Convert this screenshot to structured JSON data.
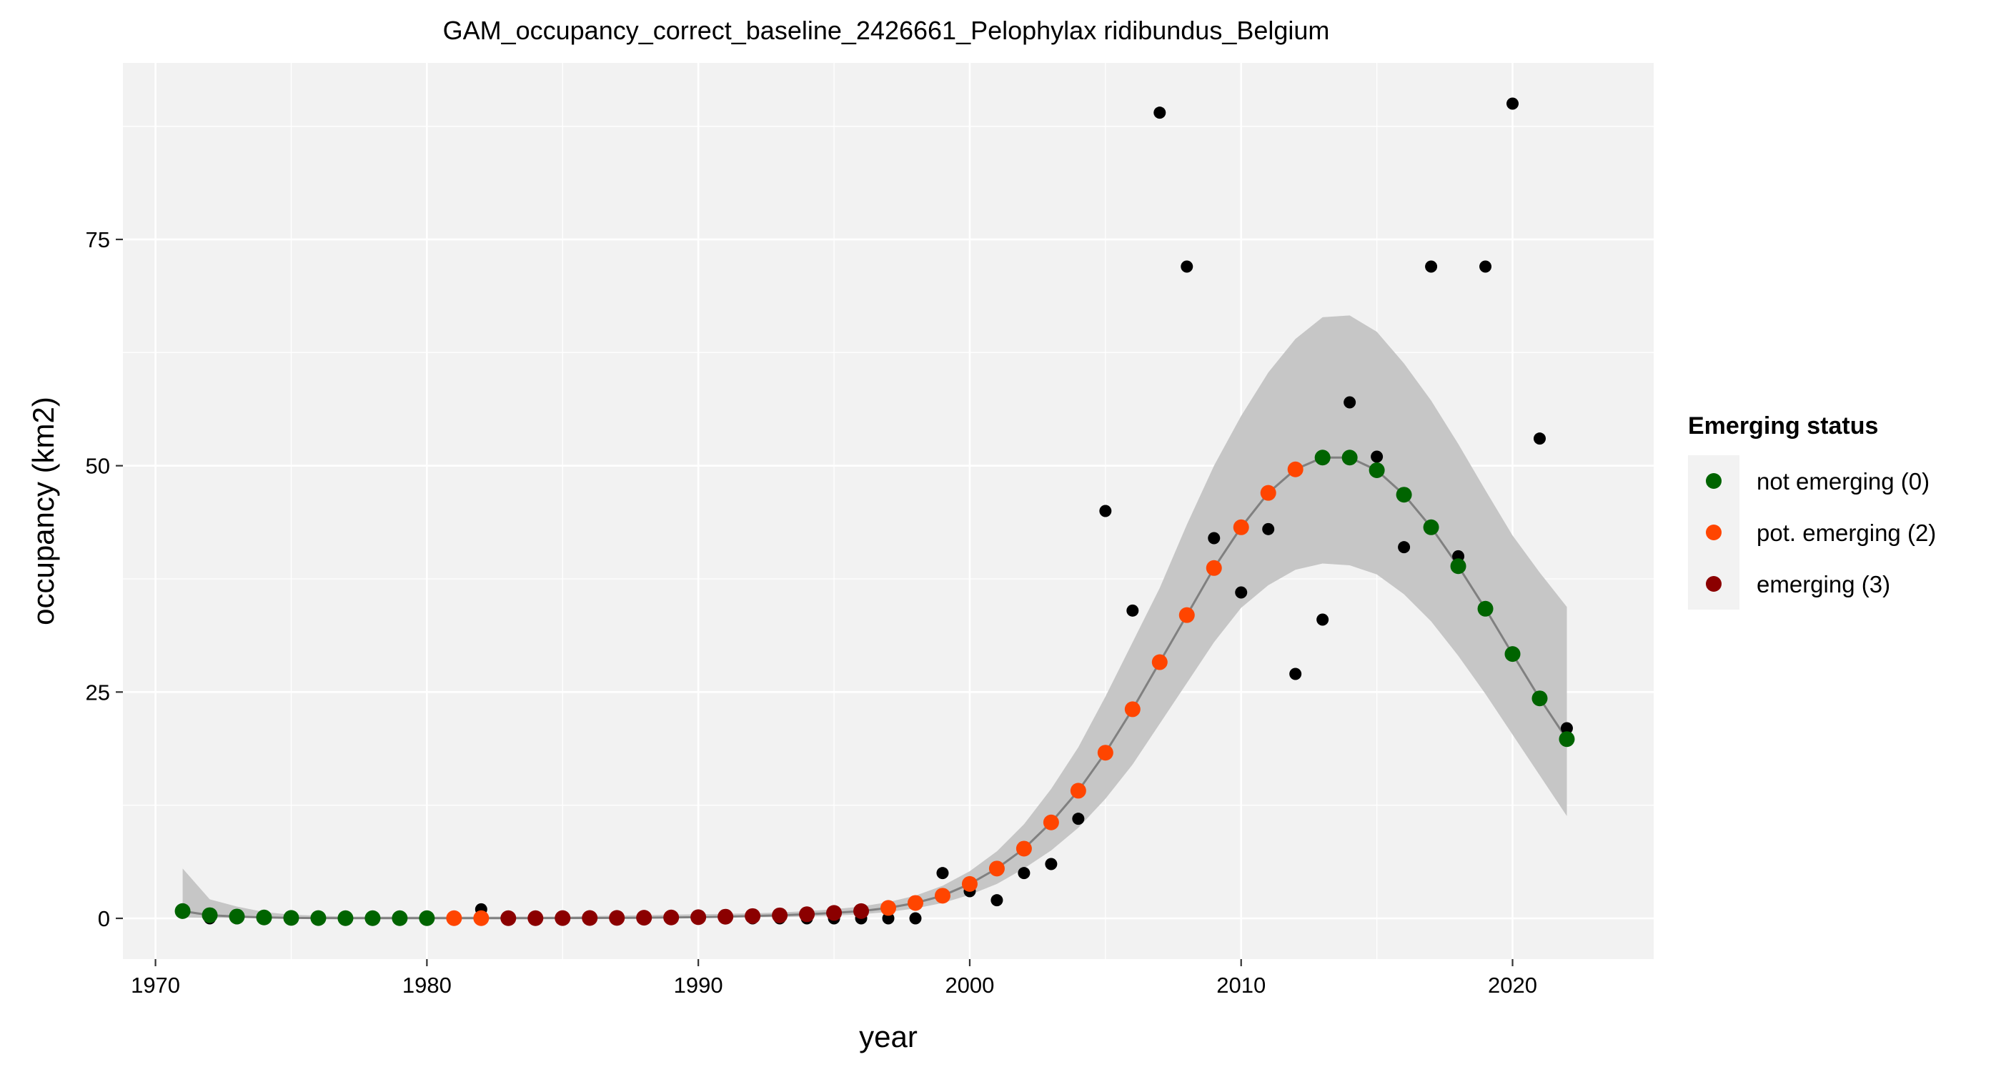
{
  "chart_data": {
    "type": "scatter",
    "title": "GAM_occupancy_correct_baseline_2426661_Pelophylax ridibundus_Belgium",
    "xlabel": "year",
    "ylabel": "occupancy (km2)",
    "xlim": [
      1968.8,
      2025.2
    ],
    "ylim": [
      -4.5,
      94.5
    ],
    "x_ticks": [
      1970,
      1980,
      1990,
      2000,
      2010,
      2020
    ],
    "y_ticks": [
      0,
      25,
      50,
      75
    ],
    "grid": true,
    "legend": {
      "title": "Emerging status",
      "placement": "right",
      "items": [
        {
          "label": "not emerging (0)",
          "color": "#006400"
        },
        {
          "label": "pot. emerging (2)",
          "color": "#FF4500"
        },
        {
          "label": "emerging (3)",
          "color": "#8B0000"
        }
      ]
    },
    "colors": {
      "panel": "#F2F2F2",
      "grid": "#FFFFFF",
      "ribbon": "#C6C6C6",
      "line": "#808080",
      "observed": "#000000"
    },
    "observed": {
      "x": [
        1971,
        1972,
        1973,
        1974,
        1975,
        1976,
        1977,
        1978,
        1979,
        1980,
        1981,
        1982,
        1983,
        1984,
        1985,
        1986,
        1987,
        1988,
        1989,
        1990,
        1991,
        1992,
        1993,
        1994,
        1995,
        1996,
        1997,
        1998,
        1999,
        2000,
        2001,
        2002,
        2003,
        2004,
        2005,
        2006,
        2007,
        2008,
        2009,
        2010,
        2011,
        2012,
        2013,
        2014,
        2015,
        2016,
        2017,
        2018,
        2019,
        2020,
        2021,
        2022
      ],
      "y": [
        1,
        0,
        0,
        0,
        0,
        0,
        0,
        0,
        0,
        0,
        0,
        1,
        0,
        0,
        0,
        0,
        0,
        0,
        0,
        0,
        0,
        0,
        0,
        0,
        0,
        0,
        0,
        0,
        5,
        3,
        2,
        5,
        6,
        11,
        45,
        34,
        89,
        72,
        42,
        36,
        43,
        27,
        33,
        57,
        51,
        41,
        72,
        40,
        72,
        90,
        53,
        21
      ]
    },
    "fit": {
      "x": [
        1971,
        1972,
        1973,
        1974,
        1975,
        1976,
        1977,
        1978,
        1979,
        1980,
        1981,
        1982,
        1983,
        1984,
        1985,
        1986,
        1987,
        1988,
        1989,
        1990,
        1991,
        1992,
        1993,
        1994,
        1995,
        1996,
        1997,
        1998,
        1999,
        2000,
        2001,
        2002,
        2003,
        2004,
        2005,
        2006,
        2007,
        2008,
        2009,
        2010,
        2011,
        2012,
        2013,
        2014,
        2015,
        2016,
        2017,
        2018,
        2019,
        2020,
        2021,
        2022
      ],
      "y": [
        0.8,
        0.35,
        0.2,
        0.1,
        0.05,
        0.03,
        0.02,
        0.02,
        0.02,
        0.02,
        0.02,
        0.02,
        0.02,
        0.02,
        0.03,
        0.04,
        0.05,
        0.07,
        0.1,
        0.13,
        0.18,
        0.25,
        0.33,
        0.45,
        0.6,
        0.8,
        1.15,
        1.7,
        2.5,
        3.8,
        5.5,
        7.7,
        10.6,
        14.1,
        18.3,
        23.1,
        28.3,
        33.5,
        38.7,
        43.2,
        47.0,
        49.6,
        50.9,
        50.9,
        49.5,
        46.8,
        43.2,
        38.9,
        34.2,
        29.2,
        24.3,
        19.8
      ],
      "lower": [
        0.1,
        0.05,
        0.03,
        0.02,
        0.01,
        0.01,
        0.01,
        0.01,
        0.01,
        0.01,
        0.01,
        0.01,
        0.01,
        0.01,
        0.01,
        0.01,
        0.02,
        0.03,
        0.04,
        0.05,
        0.08,
        0.12,
        0.15,
        0.2,
        0.3,
        0.45,
        0.7,
        1.1,
        1.7,
        2.6,
        3.8,
        5.5,
        7.5,
        10.0,
        13.2,
        17.0,
        21.5,
        26.0,
        30.5,
        34.3,
        36.8,
        38.5,
        39.2,
        39.0,
        38.0,
        35.8,
        32.8,
        29.0,
        24.8,
        20.3,
        15.8,
        11.3
      ],
      "upper": [
        5.5,
        2.1,
        1.3,
        0.7,
        0.4,
        0.3,
        0.2,
        0.2,
        0.2,
        0.2,
        0.2,
        0.2,
        0.2,
        0.2,
        0.2,
        0.25,
        0.3,
        0.35,
        0.4,
        0.45,
        0.5,
        0.55,
        0.65,
        0.8,
        1.0,
        1.3,
        1.8,
        2.5,
        3.6,
        5.2,
        7.4,
        10.4,
        14.3,
        18.9,
        24.5,
        30.5,
        36.5,
        43.5,
        50.0,
        55.5,
        60.3,
        64.0,
        66.4,
        66.6,
        64.8,
        61.3,
        57.2,
        52.4,
        47.3,
        42.3,
        38.2,
        34.4
      ],
      "status": [
        0,
        0,
        0,
        0,
        0,
        0,
        0,
        0,
        0,
        0,
        2,
        2,
        3,
        3,
        3,
        3,
        3,
        3,
        3,
        3,
        3,
        3,
        3,
        3,
        3,
        3,
        2,
        2,
        2,
        2,
        2,
        2,
        2,
        2,
        2,
        2,
        2,
        2,
        2,
        2,
        2,
        2,
        0,
        0,
        0,
        0,
        0,
        0,
        0,
        0,
        0,
        0
      ]
    }
  }
}
